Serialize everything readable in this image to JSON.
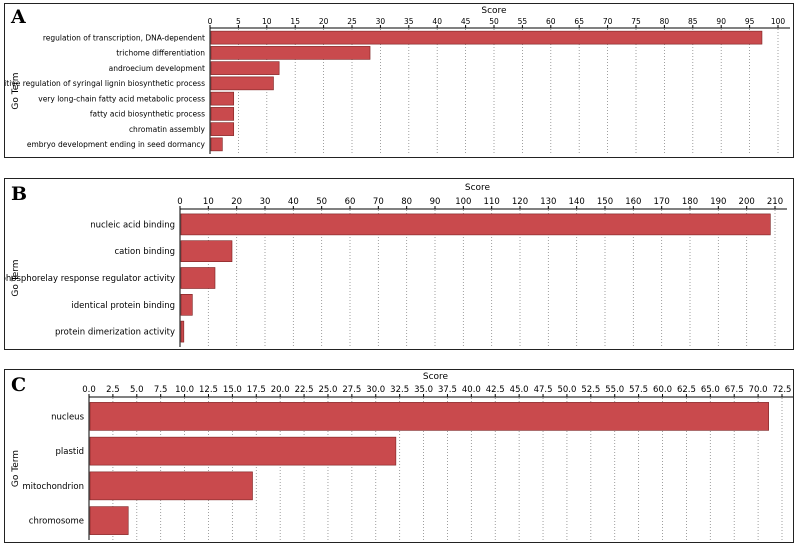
{
  "colors": {
    "bar": "#c94a4d",
    "bar_edge": "#7a2020",
    "grid": "#888888",
    "axis": "#000000",
    "text": "#000000"
  },
  "chart_data": [
    {
      "panel": "A",
      "type": "bar",
      "orientation": "horizontal",
      "title": "Score",
      "xlabel": "Score",
      "ylabel": "Go Term",
      "xlim": [
        0,
        100
      ],
      "xticks": [
        "0",
        "5",
        "10",
        "15",
        "20",
        "25",
        "30",
        "35",
        "40",
        "45",
        "50",
        "55",
        "60",
        "65",
        "70",
        "75",
        "80",
        "85",
        "90",
        "95",
        "100"
      ],
      "xtick_values": [
        0,
        5,
        10,
        15,
        20,
        25,
        30,
        35,
        40,
        45,
        50,
        55,
        60,
        65,
        70,
        75,
        80,
        85,
        90,
        95,
        100
      ],
      "categories": [
        "regulation of transcription, DNA-dependent",
        "trichome differentiation",
        "androecium development",
        "positive regulation of syringal lignin biosynthetic process",
        "very long-chain fatty acid metabolic process",
        "fatty acid biosynthetic process",
        "chromatin assembly",
        "embryo development ending in seed dormancy"
      ],
      "values": [
        97,
        28,
        12,
        11,
        4,
        4,
        4,
        2
      ]
    },
    {
      "panel": "B",
      "type": "bar",
      "orientation": "horizontal",
      "title": "Score",
      "xlabel": "Score",
      "ylabel": "Go Term",
      "xlim": [
        0,
        210
      ],
      "xticks": [
        "0",
        "10",
        "20",
        "30",
        "40",
        "50",
        "60",
        "70",
        "80",
        "90",
        "100",
        "110",
        "120",
        "130",
        "140",
        "150",
        "160",
        "170",
        "180",
        "190",
        "200",
        "210"
      ],
      "xtick_values": [
        0,
        10,
        20,
        30,
        40,
        50,
        60,
        70,
        80,
        90,
        100,
        110,
        120,
        130,
        140,
        150,
        160,
        170,
        180,
        190,
        200,
        210
      ],
      "categories": [
        "nucleic acid binding",
        "cation binding",
        "phosphorelay response regulator activity",
        "identical protein binding",
        "protein dimerization activity"
      ],
      "values": [
        208,
        18,
        12,
        4,
        1
      ]
    },
    {
      "panel": "C",
      "type": "bar",
      "orientation": "horizontal",
      "title": "Score",
      "xlabel": "Score",
      "ylabel": "Go Term",
      "xlim": [
        0,
        72.5
      ],
      "xticks": [
        "0.0",
        "2.5",
        "5.0",
        "7.5",
        "10.0",
        "12.5",
        "15.0",
        "17.5",
        "20.0",
        "22.5",
        "25.0",
        "27.5",
        "30.0",
        "32.5",
        "35.0",
        "37.5",
        "40.0",
        "42.5",
        "45.0",
        "47.5",
        "50.0",
        "52.5",
        "55.0",
        "57.5",
        "60.0",
        "62.5",
        "65.0",
        "67.5",
        "70.0",
        "72.5"
      ],
      "xtick_values": [
        0,
        2.5,
        5,
        7.5,
        10,
        12.5,
        15,
        17.5,
        20,
        22.5,
        25,
        27.5,
        30,
        32.5,
        35,
        37.5,
        40,
        42.5,
        45,
        47.5,
        50,
        52.5,
        55,
        57.5,
        60,
        62.5,
        65,
        67.5,
        70,
        72.5
      ],
      "categories": [
        "nucleus",
        "plastid",
        "mitochondrion",
        "chromosome"
      ],
      "values": [
        71,
        32,
        17,
        4
      ]
    }
  ]
}
